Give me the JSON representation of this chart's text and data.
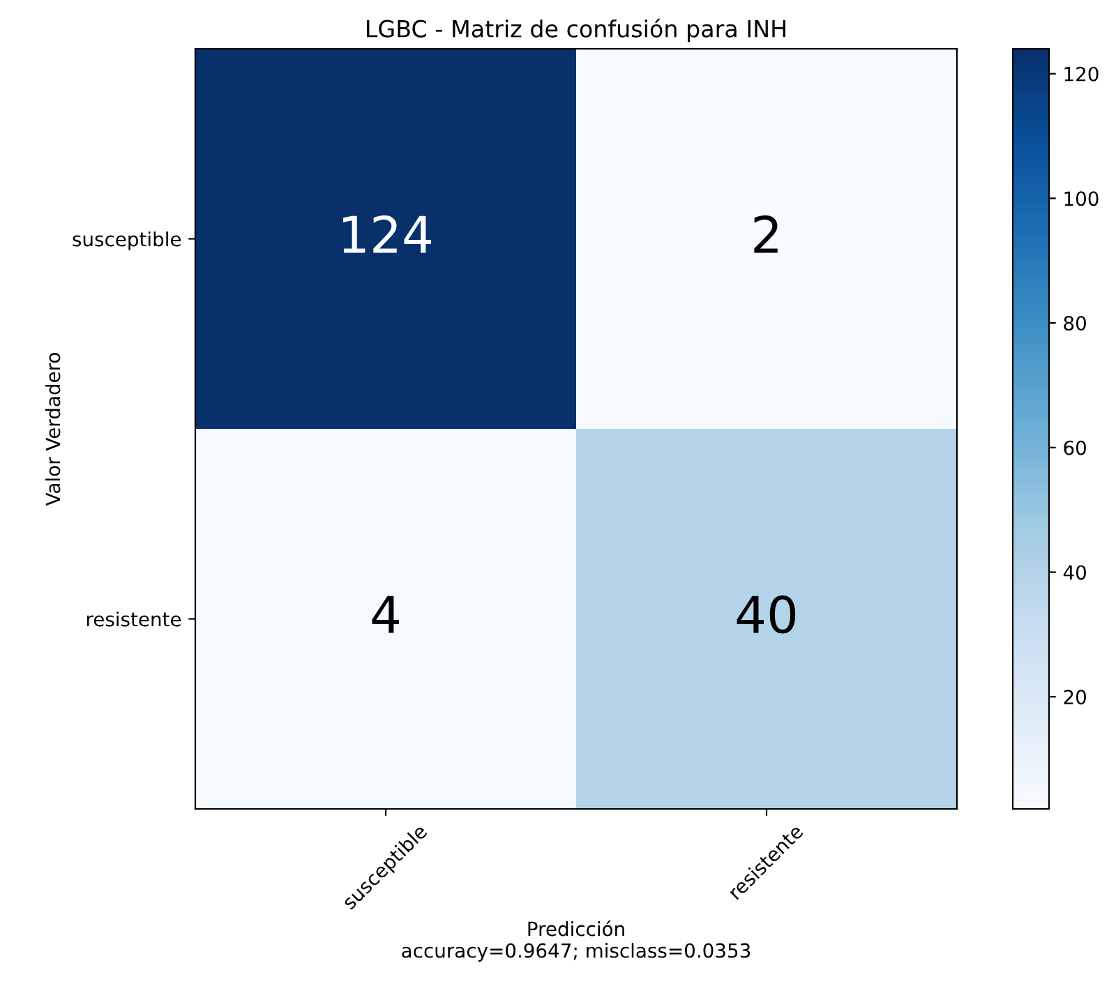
{
  "chart_data": {
    "type": "heatmap",
    "title": "LGBC - Matriz de confusión para INH",
    "categories": [
      "susceptible",
      "resistente"
    ],
    "y_categories": [
      "susceptible",
      "resistente"
    ],
    "cells": [
      [
        124,
        2
      ],
      [
        4,
        40
      ]
    ],
    "data_labels": true,
    "xlabel": "Predicción\naccuracy=0.9647; misclass=0.0353",
    "ylabel": "Valor Verdadero",
    "clim": [
      2,
      124
    ],
    "cticks": [
      20,
      40,
      60,
      80,
      100,
      120
    ],
    "grid": false
  }
}
